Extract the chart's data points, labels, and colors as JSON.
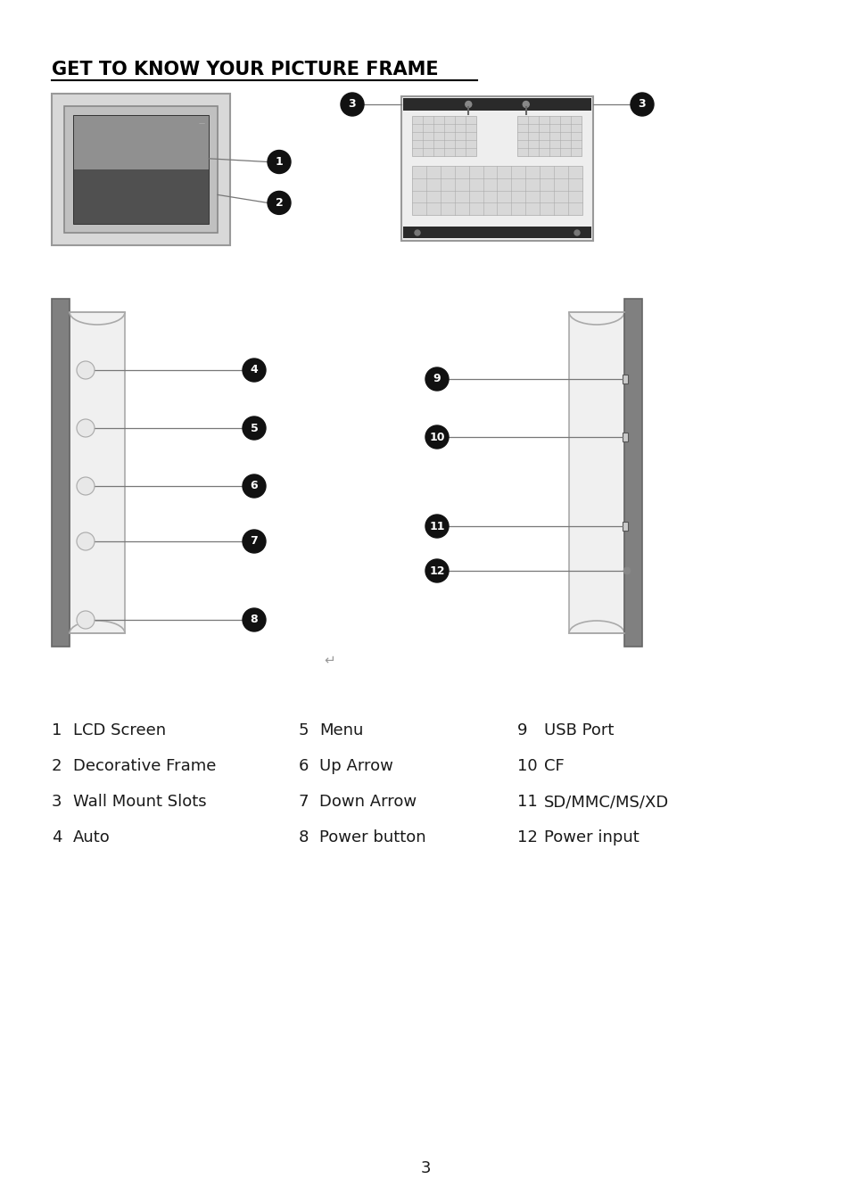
{
  "title": "GET TO KNOW YOUR PICTURE FRAME",
  "bg_color": "#ffffff",
  "text_color": "#000000",
  "label_color": "#ffffff",
  "bullet_color": "#111111",
  "page_number": "3",
  "legend": [
    {
      "num": "1",
      "text": "LCD Screen"
    },
    {
      "num": "2",
      "text": "Decorative Frame"
    },
    {
      "num": "3",
      "text": "Wall Mount Slots"
    },
    {
      "num": "4",
      "text": "Auto"
    },
    {
      "num": "5",
      "text": "Menu"
    },
    {
      "num": "6",
      "text": "Up Arrow"
    },
    {
      "num": "7",
      "text": "Down Arrow"
    },
    {
      "num": "8",
      "text": "Power button"
    },
    {
      "num": "9",
      "text": "USB Port"
    },
    {
      "num": "10",
      "text": "CF"
    },
    {
      "num": "11",
      "text": "SD/MMC/MS/XD"
    },
    {
      "num": "12",
      "text": "Power input"
    }
  ]
}
